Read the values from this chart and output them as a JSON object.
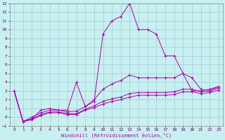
{
  "xlabel": "Windchill (Refroidissement éolien,°C)",
  "bg_color": "#c8f0f0",
  "grid_color": "#a0c8d8",
  "line_color": "#aa00aa",
  "xlim": [
    -0.5,
    23.5
  ],
  "ylim": [
    -1,
    13
  ],
  "xticks": [
    0,
    1,
    2,
    3,
    4,
    5,
    6,
    7,
    8,
    9,
    10,
    11,
    12,
    13,
    14,
    15,
    16,
    17,
    18,
    19,
    20,
    21,
    22,
    23
  ],
  "yticks": [
    -1,
    0,
    1,
    2,
    3,
    4,
    5,
    6,
    7,
    8,
    9,
    10,
    11,
    12,
    13
  ],
  "line1_x": [
    0,
    1,
    2,
    3,
    4,
    5,
    6,
    7,
    8,
    9,
    10,
    11,
    12,
    13,
    14,
    15,
    16,
    17,
    18,
    19,
    20,
    21,
    22,
    23
  ],
  "line1_y": [
    3,
    -0.5,
    -0.2,
    0.8,
    1.0,
    0.8,
    0.8,
    4.0,
    1.2,
    1.8,
    9.5,
    11.0,
    11.5,
    13.0,
    10.0,
    10.0,
    9.5,
    7.0,
    7.0,
    5.0,
    3.0,
    3.0,
    3.2,
    3.5
  ],
  "line2_x": [
    0,
    1,
    2,
    3,
    4,
    5,
    6,
    7,
    8,
    9,
    10,
    11,
    12,
    13,
    14,
    15,
    16,
    17,
    18,
    19,
    20,
    21,
    22,
    23
  ],
  "line2_y": [
    3,
    -0.5,
    0.0,
    0.5,
    0.8,
    0.8,
    0.6,
    0.7,
    1.2,
    2.0,
    3.2,
    3.8,
    4.2,
    4.8,
    4.5,
    4.5,
    4.5,
    4.5,
    4.5,
    5.0,
    4.5,
    3.2,
    3.0,
    3.5
  ],
  "line3_x": [
    0,
    1,
    2,
    3,
    4,
    5,
    6,
    7,
    8,
    9,
    10,
    11,
    12,
    13,
    14,
    15,
    16,
    17,
    18,
    19,
    20,
    21,
    22,
    23
  ],
  "line3_y": [
    3,
    -0.5,
    -0.2,
    0.3,
    0.6,
    0.6,
    0.4,
    0.4,
    0.9,
    1.3,
    1.8,
    2.1,
    2.3,
    2.7,
    2.8,
    2.8,
    2.8,
    2.8,
    2.9,
    3.2,
    3.2,
    2.9,
    3.0,
    3.3
  ],
  "line4_x": [
    0,
    1,
    2,
    3,
    4,
    5,
    6,
    7,
    8,
    9,
    10,
    11,
    12,
    13,
    14,
    15,
    16,
    17,
    18,
    19,
    20,
    21,
    22,
    23
  ],
  "line4_y": [
    3,
    -0.5,
    -0.3,
    0.2,
    0.5,
    0.5,
    0.3,
    0.3,
    0.8,
    1.1,
    1.5,
    1.8,
    2.0,
    2.3,
    2.5,
    2.5,
    2.5,
    2.5,
    2.6,
    2.9,
    2.9,
    2.7,
    2.8,
    3.1
  ]
}
